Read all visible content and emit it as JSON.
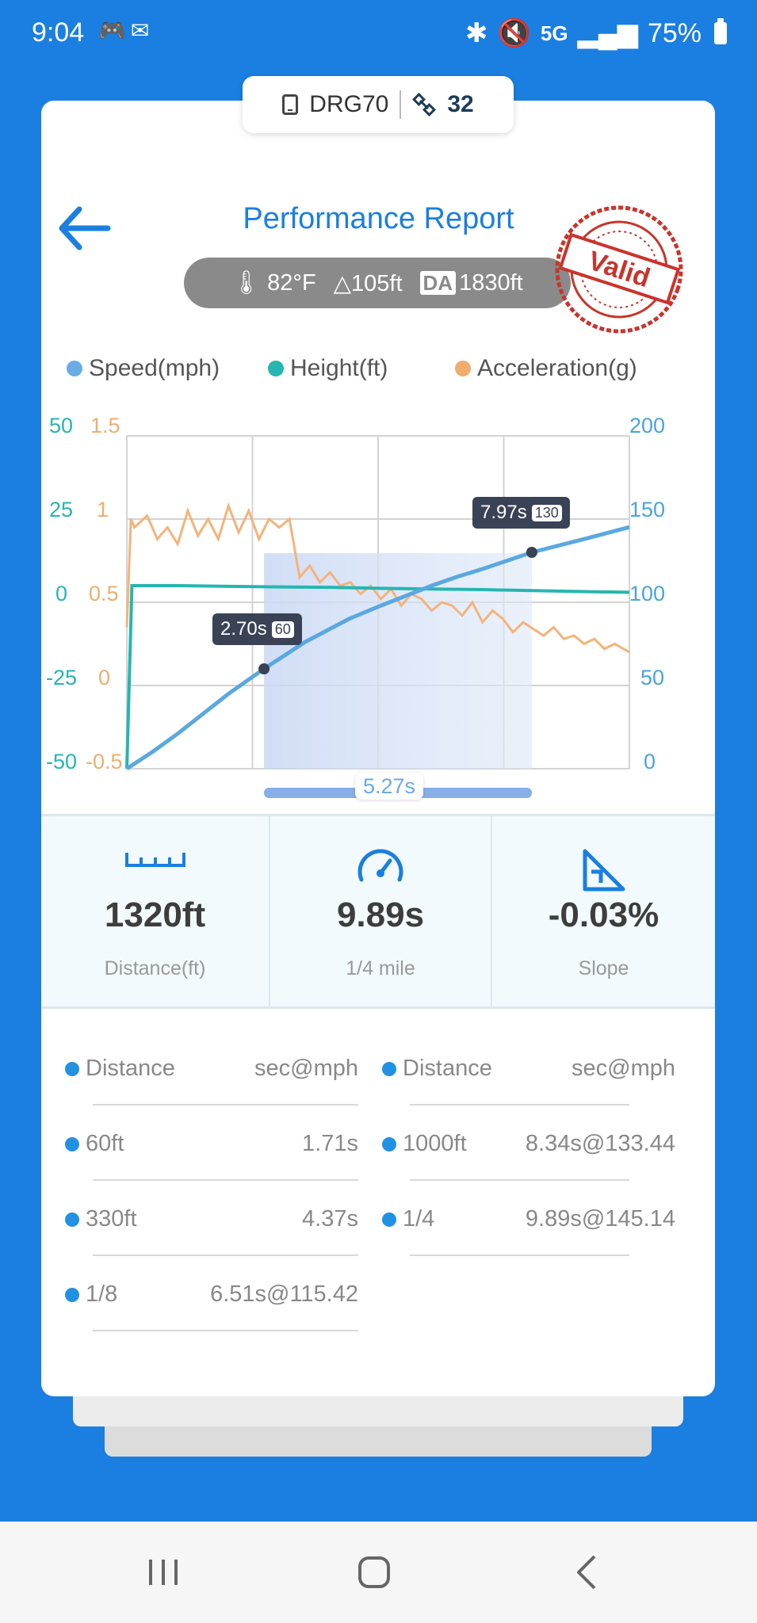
{
  "status": {
    "time": "9:04",
    "network": "5G",
    "battery": "75%"
  },
  "device": {
    "name": "DRG70",
    "satellites": "32"
  },
  "header": {
    "title": "Performance Report",
    "stamp_text": "Valid"
  },
  "conditions": {
    "temperature": "82°F",
    "elevation": "105ft",
    "da_label": "DA",
    "density_altitude": "1830ft"
  },
  "legend": {
    "speed": "Speed(mph)",
    "height": "Height(ft)",
    "acceleration": "Acceleration(g)"
  },
  "axes": {
    "height_ticks": [
      "50",
      "25",
      "0",
      "-25",
      "-50"
    ],
    "accel_ticks": [
      "1.5",
      "1",
      "0.5",
      "0",
      "-0.5"
    ],
    "speed_ticks": [
      "200",
      "150",
      "100",
      "50",
      "0"
    ]
  },
  "chart_data": {
    "type": "line",
    "x_range": [
      0,
      9.89
    ],
    "series": [
      {
        "name": "Speed(mph)",
        "axis": "right",
        "ylim": [
          0,
          200
        ],
        "x": [
          0,
          0.5,
          1,
          1.5,
          2,
          2.7,
          3.5,
          4.37,
          5,
          6,
          6.51,
          7,
          7.97,
          9,
          9.89
        ],
        "y": [
          0,
          10,
          21,
          33,
          45,
          60,
          76,
          90,
          98,
          110,
          115.42,
          120,
          130,
          138,
          145.14
        ]
      },
      {
        "name": "Height(ft)",
        "axis": "left",
        "ylim": [
          -50,
          50
        ],
        "x": [
          0,
          0.1,
          1,
          2,
          3,
          4,
          5,
          6,
          7,
          8,
          9,
          9.89
        ],
        "y": [
          -50,
          5,
          5,
          4.8,
          4.6,
          4.5,
          4.2,
          4,
          3.8,
          3.5,
          3.2,
          3
        ]
      },
      {
        "name": "Acceleration(g)",
        "axis": "left2",
        "ylim": [
          -0.5,
          1.5
        ],
        "x": [
          0,
          0.08,
          0.15,
          0.4,
          0.6,
          0.8,
          1,
          1.2,
          1.4,
          1.6,
          1.8,
          2,
          2.2,
          2.4,
          2.6,
          2.8,
          3,
          3.2,
          3.4,
          3.6,
          3.8,
          4,
          4.2,
          4.4,
          4.6,
          4.8,
          5,
          5.2,
          5.4,
          5.6,
          5.8,
          6,
          6.2,
          6.4,
          6.6,
          6.8,
          7,
          7.2,
          7.4,
          7.6,
          7.8,
          8,
          8.2,
          8.4,
          8.6,
          8.8,
          9,
          9.2,
          9.4,
          9.6,
          9.89
        ],
        "y": [
          0.35,
          1.0,
          0.95,
          1.02,
          0.88,
          0.95,
          0.85,
          1.05,
          0.9,
          1.0,
          0.88,
          1.08,
          0.92,
          1.05,
          0.88,
          1.0,
          0.95,
          1.0,
          0.65,
          0.72,
          0.62,
          0.68,
          0.6,
          0.62,
          0.55,
          0.6,
          0.52,
          0.58,
          0.48,
          0.55,
          0.52,
          0.45,
          0.5,
          0.48,
          0.42,
          0.5,
          0.38,
          0.45,
          0.4,
          0.32,
          0.38,
          0.34,
          0.3,
          0.35,
          0.28,
          0.3,
          0.25,
          0.28,
          0.22,
          0.25,
          0.2
        ]
      }
    ],
    "markers": [
      {
        "time": "2.70s",
        "speed": "60",
        "t": 2.7,
        "v": 60
      },
      {
        "time": "7.97s",
        "speed": "130",
        "t": 7.97,
        "v": 130
      }
    ],
    "range": {
      "label": "5.27s",
      "from": 2.7,
      "to": 7.97
    }
  },
  "stats": [
    {
      "value": "1320ft",
      "label": "Distance(ft)",
      "icon": "ruler-icon"
    },
    {
      "value": "9.89s",
      "label": "1/4 mile",
      "icon": "speedometer-icon"
    },
    {
      "value": "-0.03%",
      "label": "Slope",
      "icon": "slope-icon"
    }
  ],
  "splits": {
    "header": {
      "distance": "Distance",
      "value": "sec@mph"
    },
    "left": [
      {
        "distance": "60ft",
        "value": "1.71s"
      },
      {
        "distance": "330ft",
        "value": "4.37s"
      },
      {
        "distance": "1/8",
        "value": "6.51s@115.42"
      }
    ],
    "right": [
      {
        "distance": "1000ft",
        "value": "8.34s@133.44"
      },
      {
        "distance": "1/4",
        "value": "9.89s@145.14"
      }
    ]
  }
}
